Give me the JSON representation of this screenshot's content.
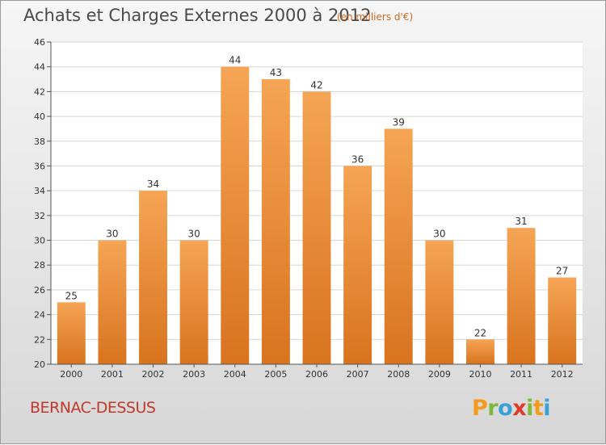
{
  "chart_data": {
    "type": "bar",
    "title": "Achats et Charges Externes 2000 à 2012",
    "unit_note": "(en milliers d'€)",
    "categories": [
      "2000",
      "2001",
      "2002",
      "2003",
      "2004",
      "2005",
      "2006",
      "2007",
      "2008",
      "2009",
      "2010",
      "2011",
      "2012"
    ],
    "values": [
      25,
      30,
      34,
      30,
      44,
      43,
      42,
      36,
      39,
      30,
      22,
      31,
      27
    ],
    "ylim": [
      20,
      46
    ],
    "yticks": [
      20,
      22,
      24,
      26,
      28,
      30,
      32,
      34,
      36,
      38,
      40,
      42,
      44,
      46
    ],
    "grid": true,
    "bar_color": "#f09a43",
    "bar_color_dark": "#d9731e"
  },
  "footer": {
    "place": "BERNAC-DESSUS",
    "logo_letters": [
      "P",
      "r",
      "o",
      "x",
      "i",
      "t",
      "i"
    ]
  }
}
